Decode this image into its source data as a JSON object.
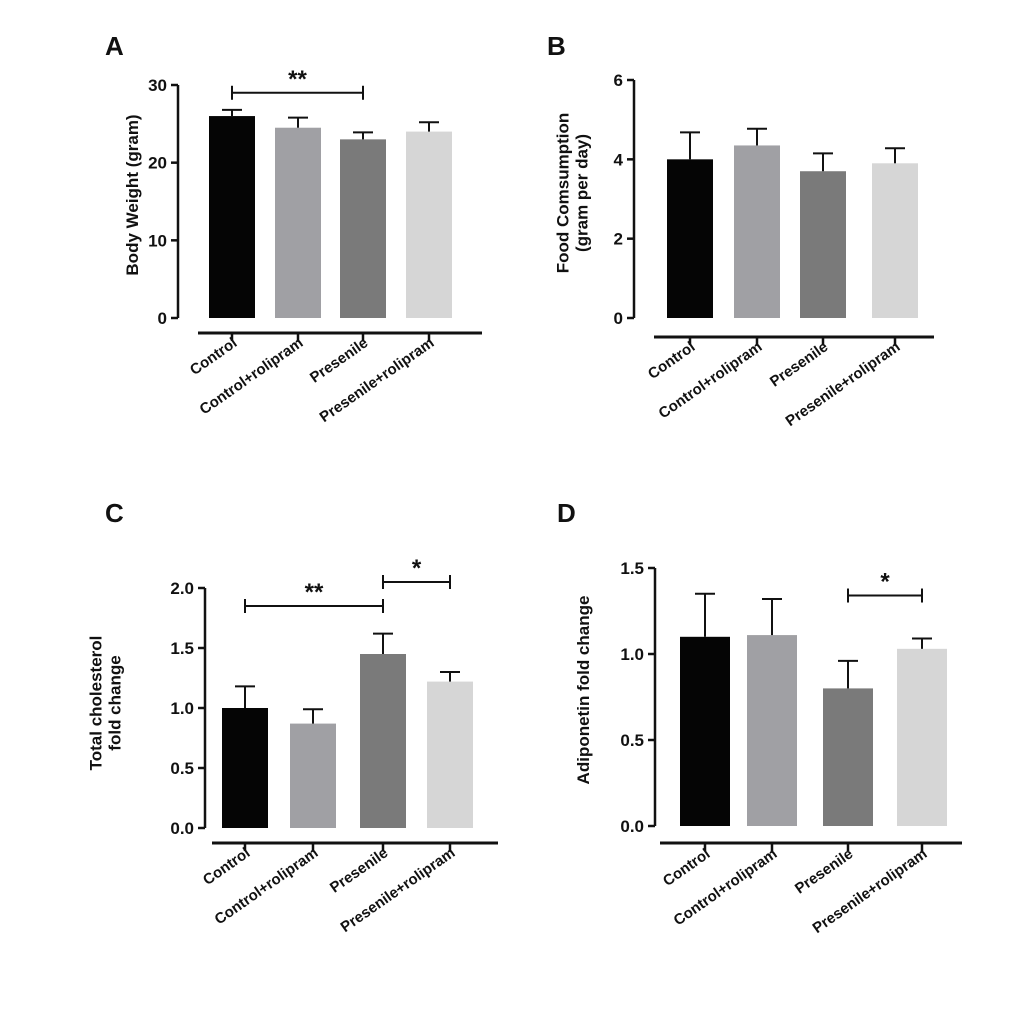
{
  "chart_data": [
    {
      "panel": "A",
      "type": "bar",
      "title": "",
      "ylabel": [
        "Body Weight (gram)"
      ],
      "xlabel": "",
      "categories": [
        "Control",
        "Control+rolipram",
        "Presenile",
        "Presenile+rolipram"
      ],
      "values": [
        26,
        24.5,
        23,
        24
      ],
      "errors": [
        0.8,
        1.3,
        0.9,
        1.2
      ],
      "colors": [
        "#050505",
        "#a0a0a4",
        "#7a7a7a",
        "#d6d6d6"
      ],
      "ylim": [
        0,
        30
      ],
      "yticks": [
        0,
        10,
        20,
        30
      ],
      "tick_labels": [
        "0",
        "10",
        "20",
        "30"
      ],
      "significance": [
        {
          "from": 0,
          "to": 2,
          "label": "**",
          "y": 29
        }
      ]
    },
    {
      "panel": "B",
      "type": "bar",
      "title": "",
      "ylabel": [
        "Food Comsumption",
        "(gram per day)"
      ],
      "xlabel": "",
      "categories": [
        "Control",
        "Control+rolipram",
        "Presenile",
        "Presenile+rolipram"
      ],
      "values": [
        4.0,
        4.35,
        3.7,
        3.9
      ],
      "errors": [
        0.68,
        0.42,
        0.45,
        0.38
      ],
      "colors": [
        "#050505",
        "#a0a0a4",
        "#7a7a7a",
        "#d6d6d6"
      ],
      "ylim": [
        0,
        6
      ],
      "yticks": [
        0,
        2,
        4,
        6
      ],
      "tick_labels": [
        "0",
        "2",
        "4",
        "6"
      ],
      "significance": []
    },
    {
      "panel": "C",
      "type": "bar",
      "title": "",
      "ylabel": [
        "Total cholesterol",
        "fold change"
      ],
      "xlabel": "",
      "categories": [
        "Control",
        "Control+rolipram",
        "Presenile",
        "Presenile+rolipram"
      ],
      "values": [
        1.0,
        0.87,
        1.45,
        1.22
      ],
      "errors": [
        0.18,
        0.12,
        0.17,
        0.08
      ],
      "colors": [
        "#050505",
        "#a0a0a4",
        "#7a7a7a",
        "#d6d6d6"
      ],
      "ylim": [
        0,
        2.0
      ],
      "yticks": [
        0,
        0.5,
        1.0,
        1.5,
        2.0
      ],
      "tick_labels": [
        "0.0",
        "0.5",
        "1.0",
        "1.5",
        "2.0"
      ],
      "significance": [
        {
          "from": 0,
          "to": 2,
          "label": "**",
          "y": 1.85
        },
        {
          "from": 2,
          "to": 3,
          "label": "*",
          "y": 2.05
        }
      ]
    },
    {
      "panel": "D",
      "type": "bar",
      "title": "",
      "ylabel": [
        "Adiponetin fold change"
      ],
      "xlabel": "",
      "categories": [
        "Control",
        "Control+rolipram",
        "Presenile",
        "Presenile+rolipram"
      ],
      "values": [
        1.1,
        1.11,
        0.8,
        1.03
      ],
      "errors": [
        0.25,
        0.21,
        0.16,
        0.06
      ],
      "colors": [
        "#050505",
        "#a0a0a4",
        "#7a7a7a",
        "#d6d6d6"
      ],
      "ylim": [
        0,
        1.5
      ],
      "yticks": [
        0,
        0.5,
        1.0,
        1.5
      ],
      "tick_labels": [
        "0.0",
        "0.5",
        "1.0",
        "1.5"
      ],
      "significance": [
        {
          "from": 2,
          "to": 3,
          "label": "*",
          "y": 1.34
        }
      ]
    }
  ]
}
